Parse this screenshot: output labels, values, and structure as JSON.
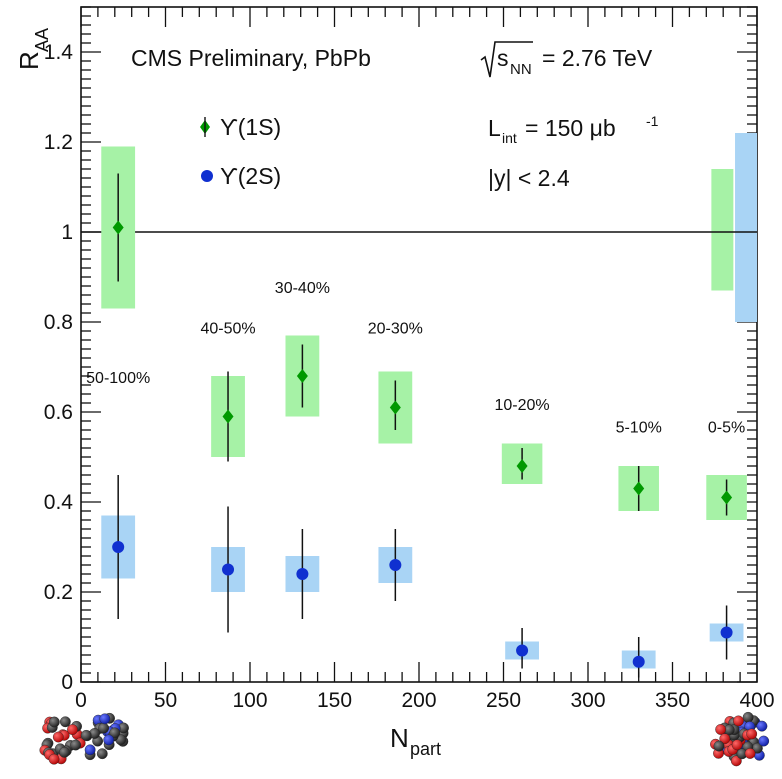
{
  "chart_data": {
    "type": "scatter",
    "title": "CMS Preliminary, PbPb",
    "energy": {
      "prefix": "s",
      "sub": "NN",
      "value": "= 2.76 TeV"
    },
    "xlabel": {
      "main": "N",
      "sub": "part"
    },
    "ylabel": {
      "main": "R",
      "sub": "AA"
    },
    "xlim": [
      0,
      400
    ],
    "ylim": [
      0,
      1.5
    ],
    "x_ticks": [
      "0",
      "50",
      "100",
      "150",
      "200",
      "250",
      "300",
      "350",
      "400"
    ],
    "y_ticks": [
      "0",
      "0.2",
      "0.4",
      "0.6",
      "0.8",
      "1",
      "1.2",
      "1.4"
    ],
    "reference_line": 1,
    "info": {
      "lumi": {
        "main": "L",
        "sub": "int",
        "value": "= 150 μb",
        "sup": "-1"
      },
      "rapidity": "|y| < 2.4"
    },
    "legend_position": "top-left",
    "colors": {
      "ups1s_marker": "#009900",
      "ups1s_box": "#a6f2a6",
      "ups2s_marker": "#1030d0",
      "ups2s_box": "#a9d4f5"
    },
    "series": [
      {
        "name": "ϒ(1S)",
        "marker": "diamond",
        "points": [
          {
            "x": 22,
            "y": 1.01,
            "stat": [
              0.89,
              1.13
            ],
            "syst": [
              0.83,
              1.19
            ]
          },
          {
            "x": 87,
            "y": 0.59,
            "stat": [
              0.49,
              0.69
            ],
            "syst": [
              0.5,
              0.68
            ]
          },
          {
            "x": 131,
            "y": 0.68,
            "stat": [
              0.61,
              0.75
            ],
            "syst": [
              0.59,
              0.77
            ]
          },
          {
            "x": 186,
            "y": 0.61,
            "stat": [
              0.56,
              0.67
            ],
            "syst": [
              0.53,
              0.69
            ]
          },
          {
            "x": 261,
            "y": 0.48,
            "stat": [
              0.45,
              0.52
            ],
            "syst": [
              0.44,
              0.53
            ]
          },
          {
            "x": 330,
            "y": 0.43,
            "stat": [
              0.38,
              0.48
            ],
            "syst": [
              0.38,
              0.48
            ]
          },
          {
            "x": 382,
            "y": 0.41,
            "stat": [
              0.37,
              0.45
            ],
            "syst": [
              0.36,
              0.46
            ]
          }
        ],
        "global_syst": [
          0.87,
          1.14
        ]
      },
      {
        "name": "ϒ(2S)",
        "marker": "circle",
        "points": [
          {
            "x": 22,
            "y": 0.3,
            "stat": [
              0.14,
              0.46
            ],
            "syst": [
              0.23,
              0.37
            ]
          },
          {
            "x": 87,
            "y": 0.25,
            "stat": [
              0.11,
              0.39
            ],
            "syst": [
              0.2,
              0.3
            ]
          },
          {
            "x": 131,
            "y": 0.24,
            "stat": [
              0.14,
              0.34
            ],
            "syst": [
              0.2,
              0.28
            ]
          },
          {
            "x": 186,
            "y": 0.26,
            "stat": [
              0.18,
              0.34
            ],
            "syst": [
              0.22,
              0.3
            ]
          },
          {
            "x": 261,
            "y": 0.07,
            "stat": [
              0.03,
              0.12
            ],
            "syst": [
              0.05,
              0.09
            ]
          },
          {
            "x": 330,
            "y": 0.045,
            "stat": [
              0.01,
              0.1
            ],
            "syst": [
              0.03,
              0.07
            ]
          },
          {
            "x": 382,
            "y": 0.11,
            "stat": [
              0.05,
              0.17
            ],
            "syst": [
              0.09,
              0.13
            ]
          }
        ],
        "global_syst": [
          0.8,
          1.22
        ]
      }
    ],
    "annotations": [
      {
        "text": "50-100%",
        "x": 22,
        "y": 0.665
      },
      {
        "text": "40-50%",
        "x": 87,
        "y": 0.775
      },
      {
        "text": "30-40%",
        "x": 131,
        "y": 0.865
      },
      {
        "text": "20-30%",
        "x": 186,
        "y": 0.775
      },
      {
        "text": "10-20%",
        "x": 261,
        "y": 0.605
      },
      {
        "text": "5-10%",
        "x": 330,
        "y": 0.555
      },
      {
        "text": "0-5%",
        "x": 382,
        "y": 0.555
      }
    ]
  }
}
